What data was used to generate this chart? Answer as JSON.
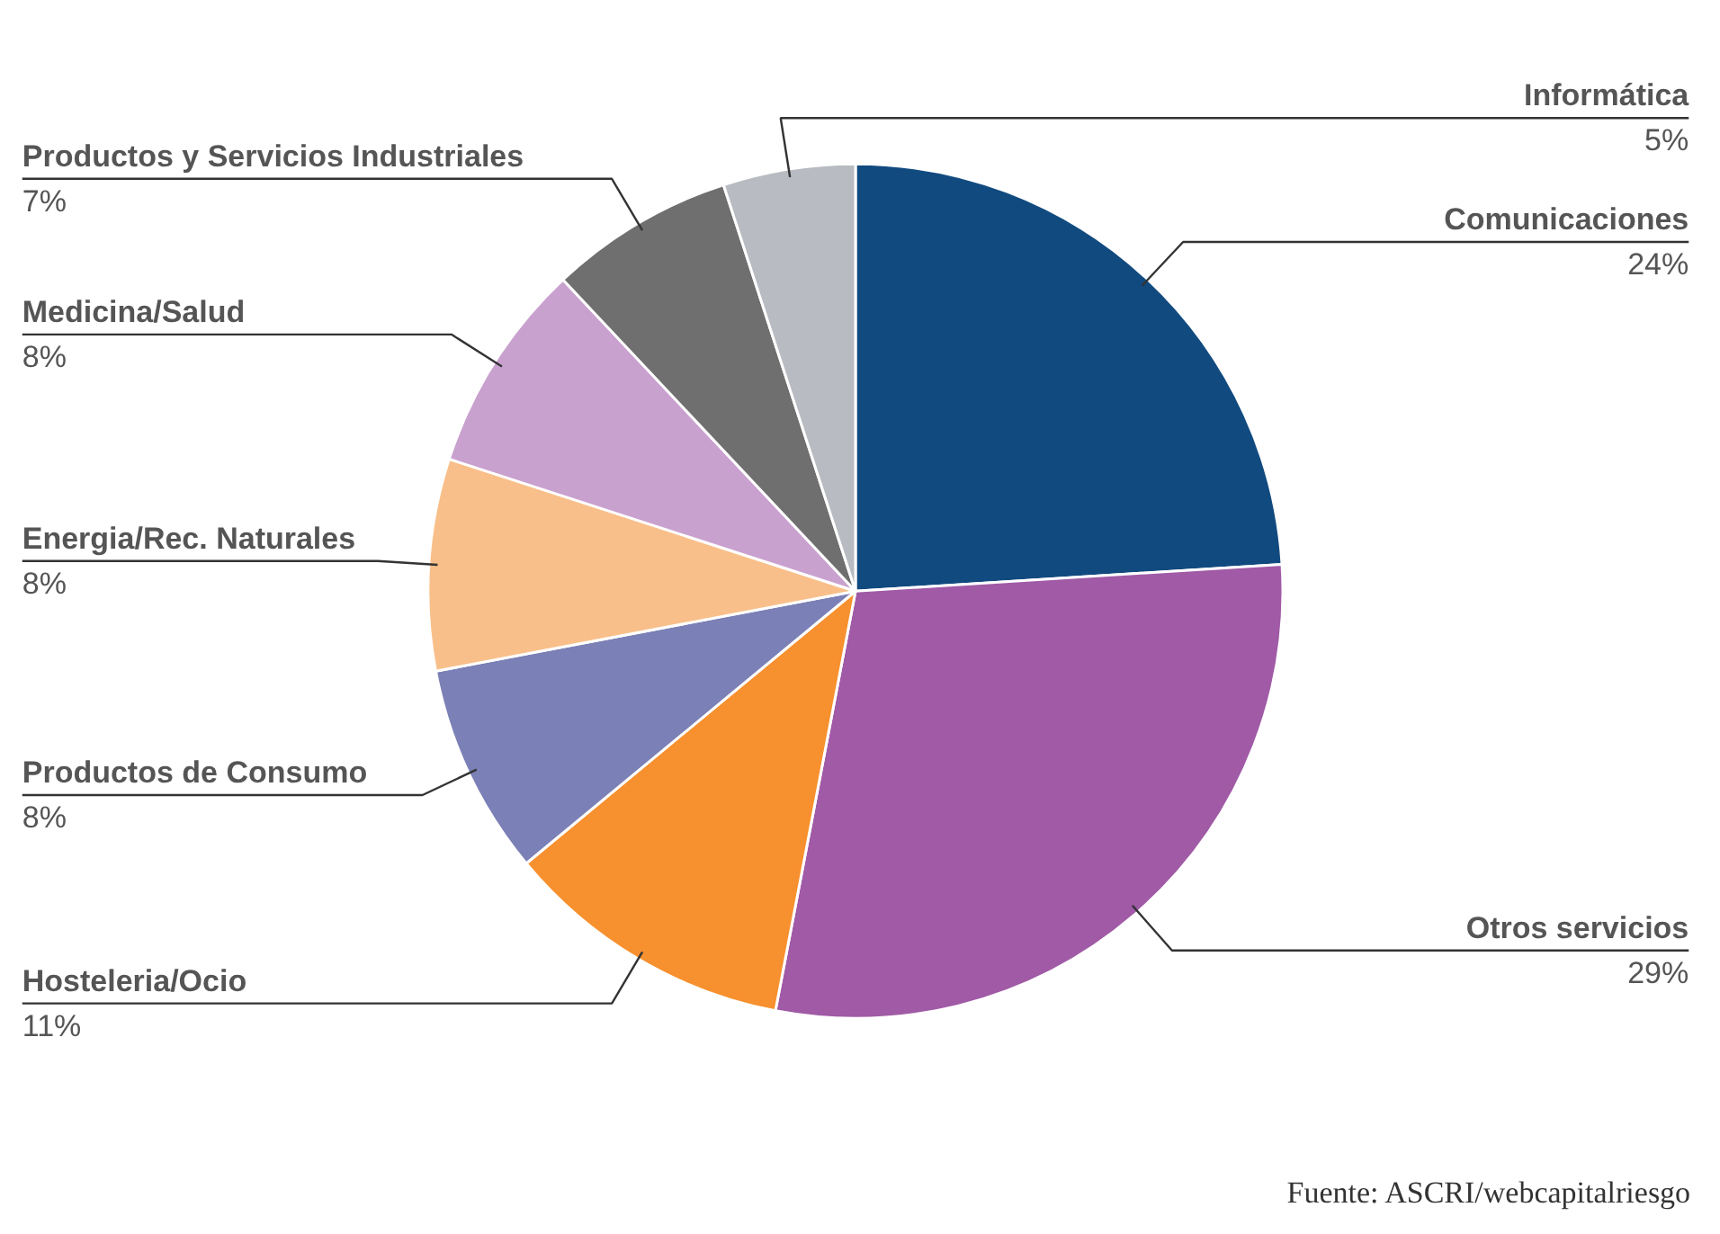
{
  "chart_data": {
    "type": "pie",
    "categories": [
      "Comunicaciones",
      "Otros servicios",
      "Hosteleria/Ocio",
      "Productos de Consumo",
      "Energia/Rec. Naturales",
      "Medicina/Salud",
      "Productos y Servicios Industriales",
      "Informática"
    ],
    "values": [
      24,
      29,
      11,
      8,
      8,
      8,
      7,
      5
    ],
    "value_labels": [
      "24%",
      "29%",
      "11%",
      "8%",
      "8%",
      "8%",
      "7%",
      "5%"
    ],
    "colors": [
      "#114a7f",
      "#a05aa6",
      "#f7902e",
      "#7b80b6",
      "#f9bf8a",
      "#c9a1cf",
      "#6f6f70",
      "#b8bbc1"
    ],
    "annotations": [
      "Fuente: ASCRI/webcapitalriesgo"
    ]
  }
}
